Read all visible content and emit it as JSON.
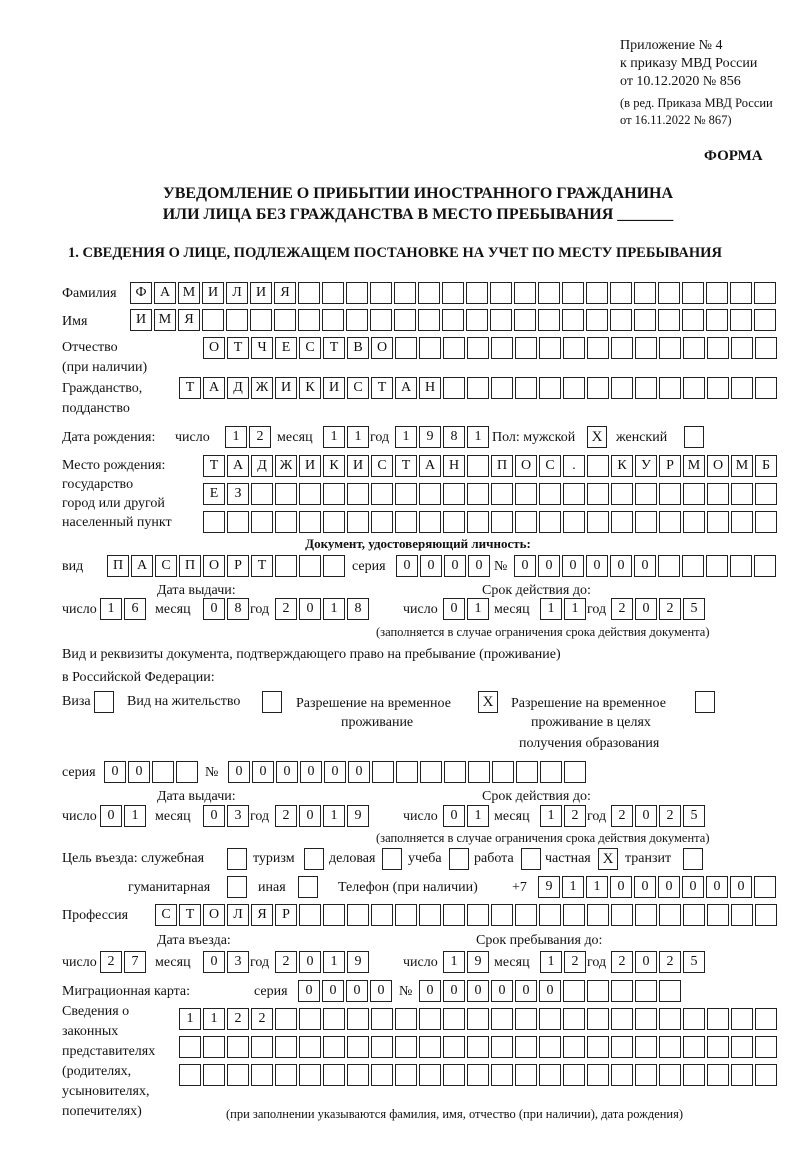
{
  "header": {
    "appendix": "Приложение № 4",
    "order": "к приказу МВД России",
    "order_date": "от 10.12.2020 № 856",
    "edition": "(в ред. Приказа МВД России",
    "edition_date": "от 16.11.2022 № 867)",
    "form_label": "ФОРМА"
  },
  "title": {
    "line1": "УВЕДОМЛЕНИЕ О ПРИБЫТИИ ИНОСТРАННОГО ГРАЖДАНИНА",
    "line2": "ИЛИ ЛИЦА БЕЗ ГРАЖДАНСТВА В МЕСТО ПРЕБЫВАНИЯ _______"
  },
  "section1": {
    "heading": "1. СВЕДЕНИЯ О ЛИЦЕ, ПОДЛЕЖАЩЕМ ПОСТАНОВКЕ НА УЧЕТ ПО МЕСТУ ПРЕБЫВАНИЯ",
    "surname": {
      "label": "Фамилия",
      "value": "ФАМИЛИЯ"
    },
    "name": {
      "label": "Имя",
      "value": "ИМЯ"
    },
    "patronymic": {
      "label": "Отчество",
      "label2": "(при наличии)",
      "value": "ОТЧЕСТВО"
    },
    "citizenship": {
      "label": "Гражданство,",
      "label2": "подданство",
      "value": "ТАДЖИКИСТАН"
    },
    "birth_date": {
      "label": "Дата рождения:",
      "day_label": "число",
      "month_label": "месяц",
      "year_label": "год",
      "day": "12",
      "month": "11",
      "year": "1981"
    },
    "sex": {
      "label": "Пол: мужской",
      "female_label": "женский",
      "male": "X",
      "female": ""
    },
    "birth_place": {
      "label": "Место рождения:",
      "label2": "государство",
      "label3": "город или другой",
      "label4": "населенный пункт",
      "row1": "ТАДЖИКИСТАН ПОС. КУРМОМБ",
      "row2": "ЕЗ",
      "row3": ""
    },
    "id_doc": {
      "heading": "Документ, удостоверяющий личность:",
      "type_label": "вид",
      "type": "ПАСПОРТ",
      "series_label": "серия",
      "series": "0000",
      "number_label": "№",
      "number": "000000",
      "issue_label": "Дата выдачи:",
      "valid_label": "Срок действия до:",
      "day_label": "число",
      "month_label": "месяц",
      "year_label": "год",
      "issue_day": "16",
      "issue_month": "08",
      "issue_year": "2018",
      "valid_day": "01",
      "valid_month": "11",
      "valid_year": "2025",
      "note": "(заполняется в случае ограничения срока действия документа)"
    },
    "permit": {
      "text1": "Вид и реквизиты документа, подтверждающего право на пребывание (проживание)",
      "text2": "в Российской Федерации:",
      "visa_label": "Виза",
      "visa": "",
      "residence_label": "Вид на жительство",
      "residence": "",
      "temp_label": "Разрешение на временное",
      "temp_label2": "проживание",
      "temp": "X",
      "edu_label": "Разрешение на временное",
      "edu_label2": "проживание в целях",
      "edu_label3": "получения образования",
      "edu": "",
      "series_label": "серия",
      "series": "00",
      "number_label": "№",
      "number": "000000",
      "issue_label": "Дата выдачи:",
      "valid_label": "Срок действия до:",
      "day_label": "число",
      "month_label": "месяц",
      "year_label": "год",
      "issue_day": "01",
      "issue_month": "03",
      "issue_year": "2019",
      "valid_day": "01",
      "valid_month": "12",
      "valid_year": "2025",
      "note": "(заполняется в случае ограничения срока действия документа)"
    },
    "purpose": {
      "label": "Цель въезда: служебная",
      "options": [
        {
          "label": "туризм",
          "checked": ""
        },
        {
          "label": "деловая",
          "checked": ""
        },
        {
          "label": "учеба",
          "checked": ""
        },
        {
          "label": "работа",
          "checked": ""
        },
        {
          "label": "частная",
          "checked": "X"
        },
        {
          "label": "транзит",
          "checked": ""
        }
      ],
      "official": "",
      "humanitarian_label": "гуманитарная",
      "humanitarian": "",
      "other_label": "иная",
      "other": ""
    },
    "phone": {
      "label": "Телефон (при наличии)",
      "prefix": "+7",
      "value": "911000000"
    },
    "profession": {
      "label": "Профессия",
      "value": "СТОЛЯР"
    },
    "entry": {
      "entry_label": "Дата въезда:",
      "stay_label": "Срок пребывания до:",
      "day_label": "число",
      "month_label": "месяц",
      "year_label": "год",
      "entry_day": "27",
      "entry_month": "03",
      "entry_year": "2019",
      "stay_day": "19",
      "stay_month": "12",
      "stay_year": "2025"
    },
    "migration_card": {
      "label": "Миграционная карта:",
      "series_label": "серия",
      "series": "0000",
      "number_label": "№",
      "number": "000000"
    },
    "representatives": {
      "label1": "Сведения о",
      "label2": "законных",
      "label3": "представителях",
      "label4": "(родителях,",
      "label5": "усыновителях,",
      "label6": "попечителях)",
      "row1": "1122",
      "row2": "",
      "row3": "",
      "note": "(при заполнении указываются фамилия, имя, отчество (при наличии), дата рождения)"
    }
  }
}
